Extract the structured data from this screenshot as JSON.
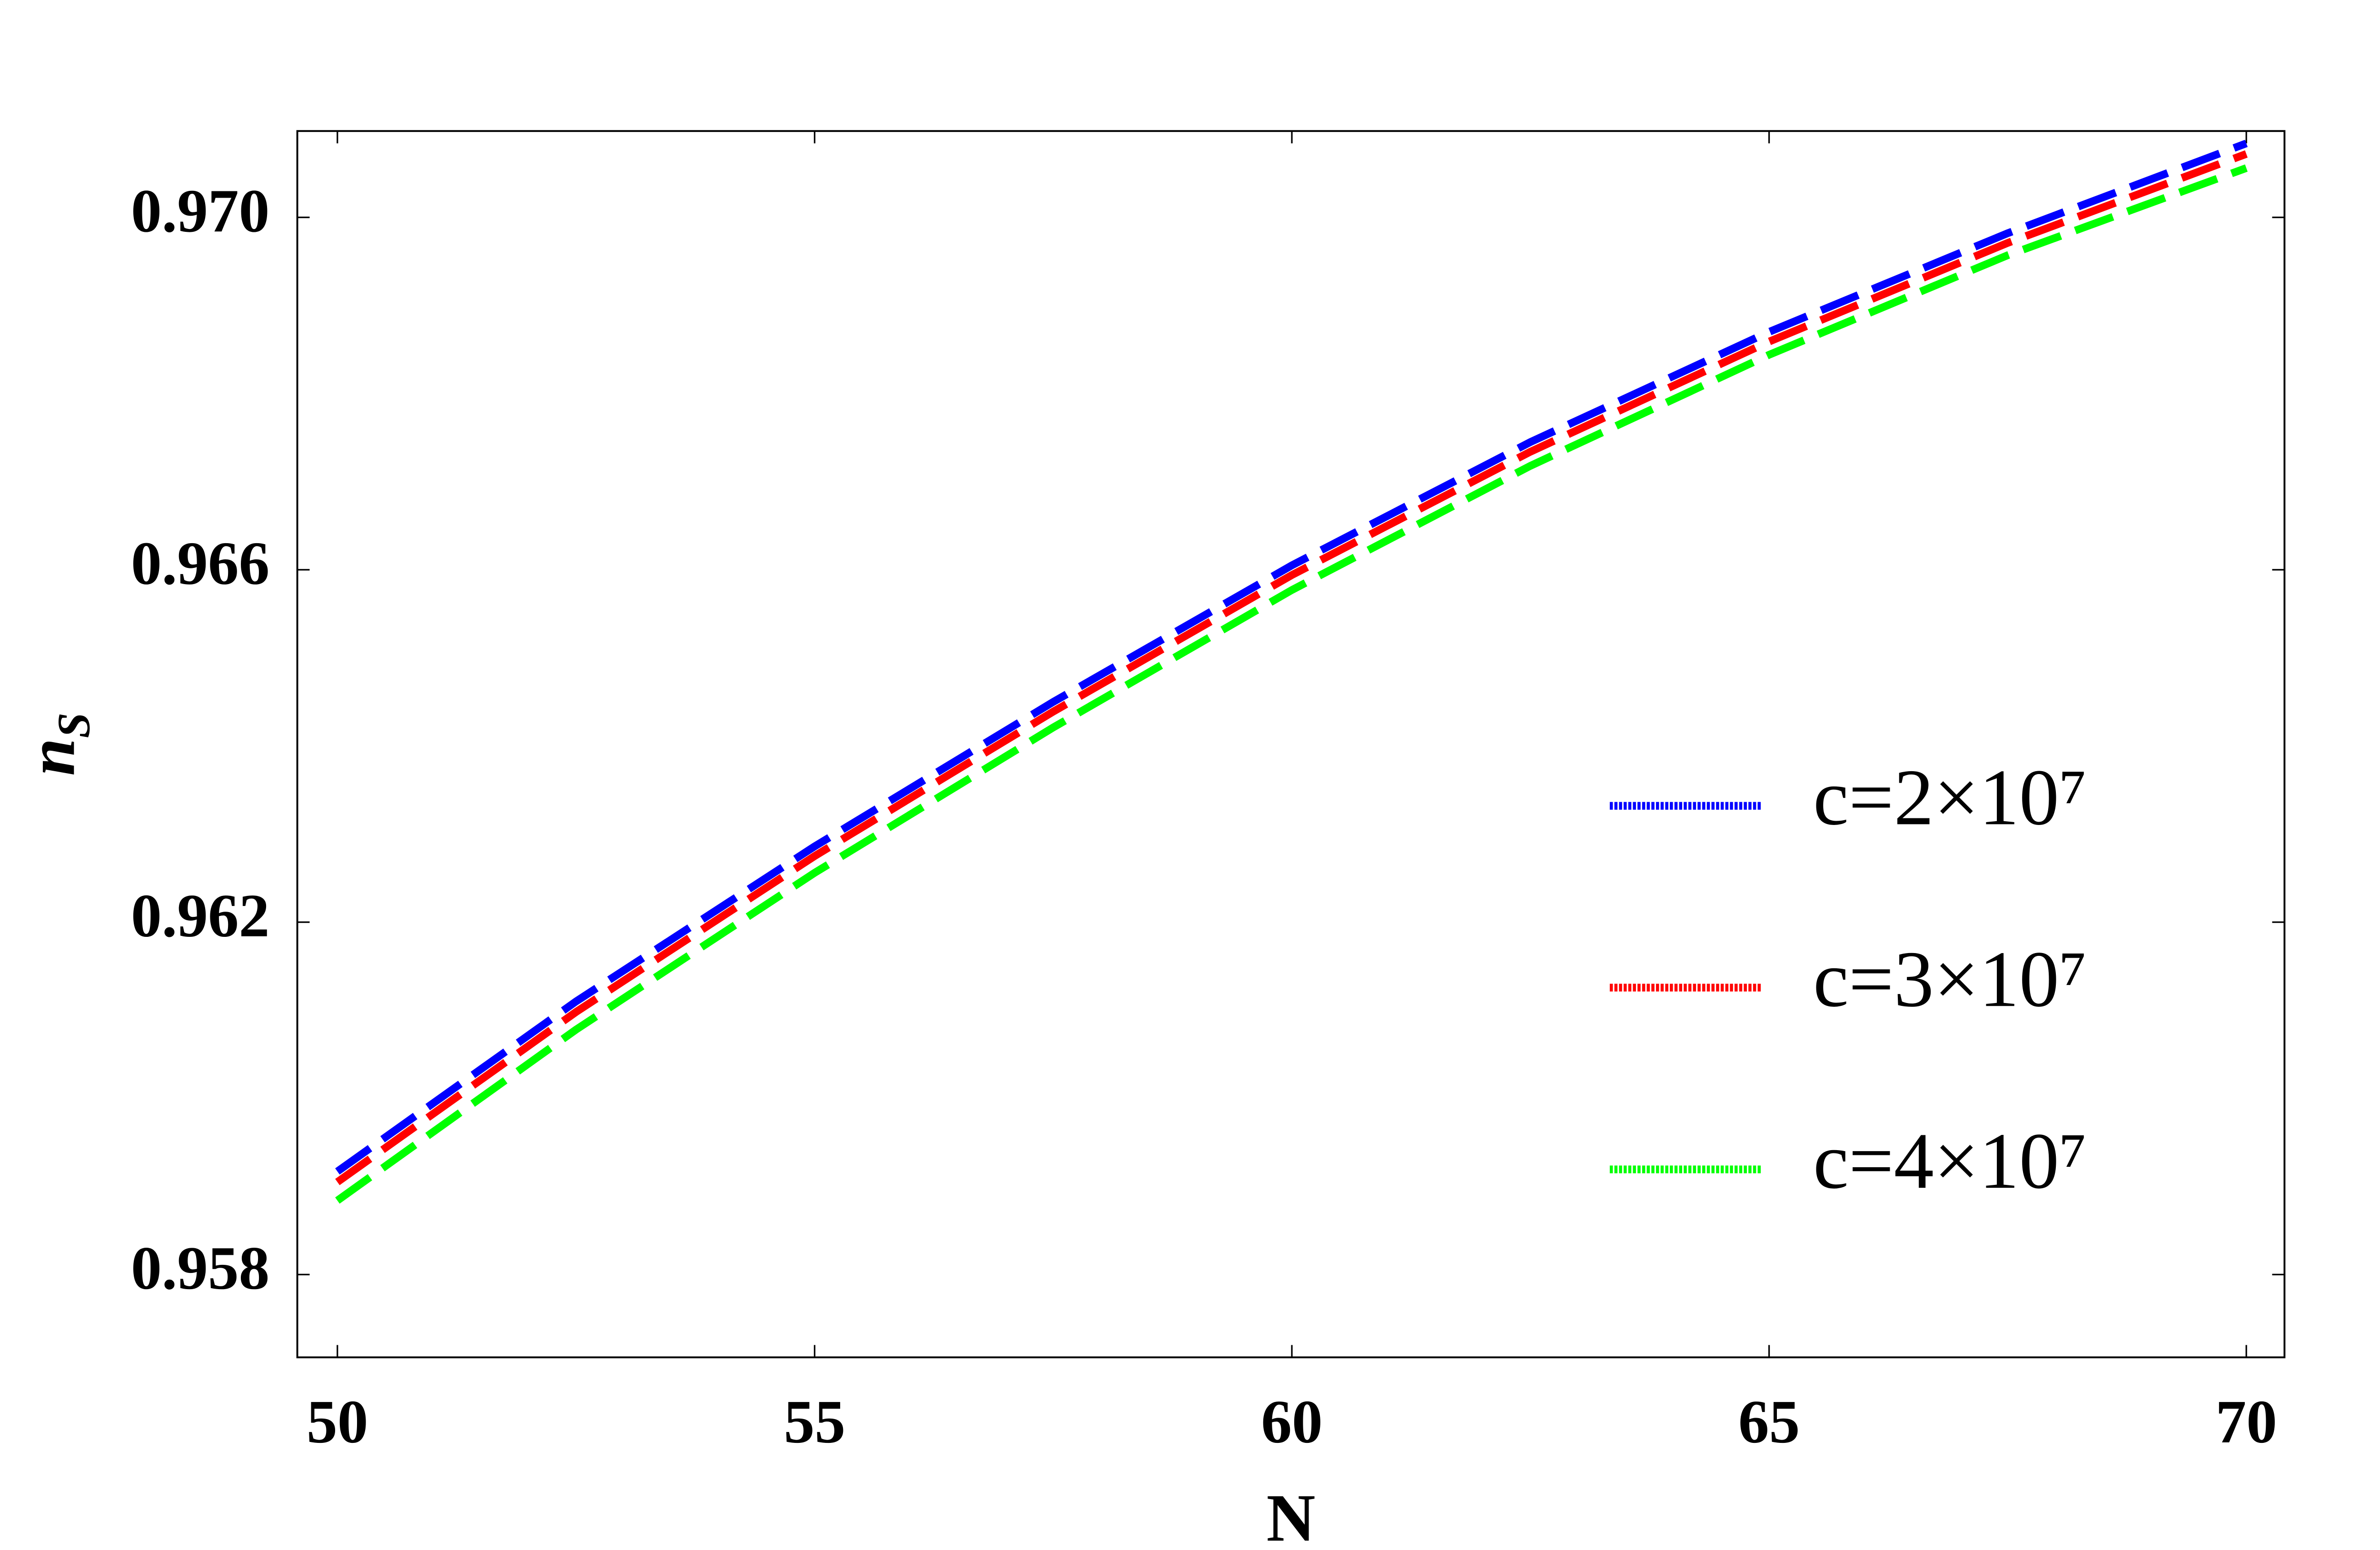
{
  "chart_data": {
    "type": "line",
    "x_label": "N",
    "y_label": "n",
    "y_label_sub": "S",
    "x": [
      50,
      52.5,
      55,
      57.5,
      60,
      62.5,
      65,
      67.5,
      70
    ],
    "series": [
      {
        "name": "c=2×10⁷",
        "color": "#0000ff",
        "values": [
          0.95917,
          0.9611,
          0.96286,
          0.9645,
          0.96605,
          0.96745,
          0.9687,
          0.96982,
          0.97084
        ]
      },
      {
        "name": "c=3×10⁷",
        "color": "#ff0000",
        "values": [
          0.95905,
          0.96098,
          0.96275,
          0.96439,
          0.96594,
          0.96734,
          0.96859,
          0.96971,
          0.97072
        ]
      },
      {
        "name": "c=4×10⁷",
        "color": "#00ff00",
        "values": [
          0.95884,
          0.96078,
          0.96256,
          0.96421,
          0.96577,
          0.96718,
          0.96844,
          0.96957,
          0.97056
        ]
      }
    ],
    "xlim": [
      49.58,
      70.4
    ],
    "xticks": [
      50,
      55,
      60,
      65,
      70
    ],
    "ylim": [
      0.95706,
      0.97098
    ],
    "yticks": [
      0.958,
      0.962,
      0.966,
      {
        "value": 0.97,
        "label": "0.970"
      }
    ],
    "line_style": "dashed",
    "legend": "center right",
    "grid": false
  }
}
